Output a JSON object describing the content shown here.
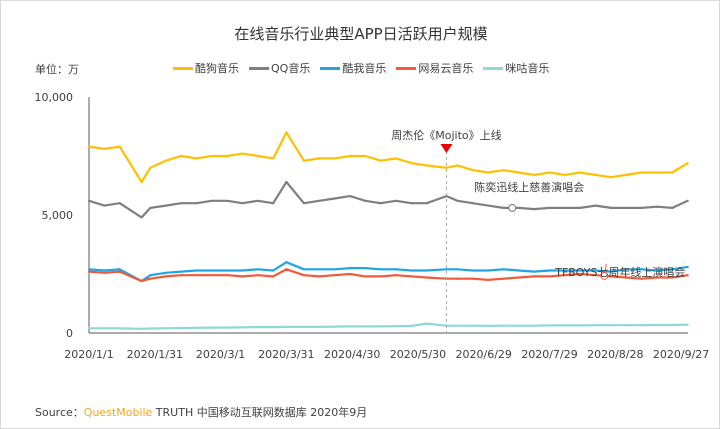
{
  "chart_data": {
    "type": "line",
    "title": "在线音乐行业典型APP日活跃用户规模",
    "unit_label": "单位：万",
    "ylim": [
      0,
      10000
    ],
    "y_ticks": [
      "0",
      "5,000",
      "10,000"
    ],
    "y_tick_values": [
      0,
      5000,
      10000
    ],
    "x_ticks": [
      "2020/1/1",
      "2020/1/31",
      "2020/3/1",
      "2020/3/31",
      "2020/4/30",
      "2020/5/30",
      "2020/6/29",
      "2020/7/29",
      "2020/8/28",
      "2020/9/27"
    ],
    "grid": false,
    "legend": "top",
    "x": [
      "2020/1/1",
      "2020/1/8",
      "2020/1/15",
      "2020/1/25",
      "2020/1/29",
      "2020/2/5",
      "2020/2/12",
      "2020/2/19",
      "2020/2/26",
      "2020/3/4",
      "2020/3/11",
      "2020/3/18",
      "2020/3/25",
      "2020/3/31",
      "2020/4/8",
      "2020/4/15",
      "2020/4/22",
      "2020/4/29",
      "2020/5/6",
      "2020/5/13",
      "2020/5/20",
      "2020/5/27",
      "2020/6/3",
      "2020/6/12",
      "2020/6/17",
      "2020/6/24",
      "2020/7/1",
      "2020/7/8",
      "2020/7/15",
      "2020/7/22",
      "2020/7/29",
      "2020/8/5",
      "2020/8/12",
      "2020/8/19",
      "2020/8/26",
      "2020/9/2",
      "2020/9/9",
      "2020/9/16",
      "2020/9/23",
      "2020/9/30"
    ],
    "series": [
      {
        "name": "酷狗音乐",
        "color": "#FFC000",
        "values": [
          7900,
          7800,
          7900,
          6400,
          7000,
          7300,
          7500,
          7400,
          7500,
          7500,
          7600,
          7500,
          7400,
          8500,
          7300,
          7400,
          7400,
          7500,
          7500,
          7300,
          7400,
          7200,
          7100,
          7000,
          7100,
          6900,
          6800,
          6900,
          6800,
          6700,
          6800,
          6700,
          6800,
          6700,
          6600,
          6700,
          6800,
          6800,
          6800,
          7200
        ]
      },
      {
        "name": "QQ音乐",
        "color": "#7F7F7F",
        "values": [
          5600,
          5400,
          5500,
          4900,
          5300,
          5400,
          5500,
          5500,
          5600,
          5600,
          5500,
          5600,
          5500,
          6400,
          5500,
          5600,
          5700,
          5800,
          5600,
          5500,
          5600,
          5500,
          5500,
          5800,
          5600,
          5500,
          5400,
          5300,
          5300,
          5250,
          5300,
          5300,
          5300,
          5400,
          5300,
          5300,
          5300,
          5350,
          5300,
          5600
        ]
      },
      {
        "name": "酷我音乐",
        "color": "#1FA5E6",
        "values": [
          2700,
          2650,
          2700,
          2200,
          2450,
          2550,
          2600,
          2650,
          2650,
          2650,
          2650,
          2700,
          2650,
          3000,
          2700,
          2700,
          2700,
          2750,
          2750,
          2700,
          2700,
          2650,
          2650,
          2700,
          2700,
          2650,
          2650,
          2700,
          2650,
          2600,
          2650,
          2650,
          2650,
          2650,
          2600,
          2700,
          2700,
          2650,
          2700,
          2800
        ]
      },
      {
        "name": "网易云音乐",
        "color": "#F15A3A",
        "values": [
          2600,
          2550,
          2600,
          2200,
          2300,
          2400,
          2450,
          2450,
          2450,
          2450,
          2400,
          2450,
          2400,
          2700,
          2450,
          2400,
          2450,
          2500,
          2400,
          2400,
          2450,
          2400,
          2350,
          2300,
          2300,
          2300,
          2250,
          2300,
          2350,
          2400,
          2400,
          2450,
          2500,
          2450,
          2400,
          2350,
          2300,
          2350,
          2350,
          2450
        ]
      },
      {
        "name": "咪咕音乐",
        "color": "#8FD8D8",
        "values": [
          200,
          200,
          200,
          180,
          190,
          200,
          210,
          220,
          230,
          230,
          240,
          250,
          250,
          260,
          260,
          260,
          270,
          280,
          280,
          280,
          290,
          300,
          400,
          310,
          310,
          310,
          300,
          310,
          310,
          310,
          320,
          320,
          320,
          330,
          330,
          330,
          330,
          340,
          340,
          350
        ]
      }
    ],
    "annotations": [
      {
        "text": "周杰伦《Mojito》上线",
        "date": "2020/6/12",
        "marker": "triangle"
      },
      {
        "text": "陈奕迅线上慈善演唱会",
        "date": "2020/7/12",
        "series": "QQ音乐"
      },
      {
        "text": "TFBOYS七周年线上演唱会",
        "date": "2020/8/23",
        "series": "网易云音乐"
      }
    ]
  },
  "source": {
    "prefix": "Source：",
    "brand": "QuestMobile",
    "rest": " TRUTH 中国移动互联网数据库 2020年9月"
  }
}
